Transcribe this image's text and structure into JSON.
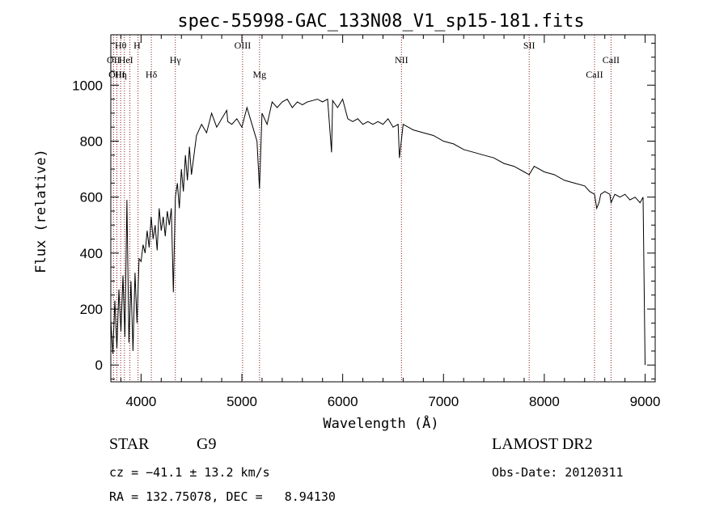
{
  "chart_data": {
    "type": "line",
    "title": "spec-55998-GAC_133N08_V1_sp15-181.fits",
    "xlabel": "Wavelength (Å)",
    "ylabel": "Flux (relative)",
    "xlim": [
      3700,
      9100
    ],
    "ylim": [
      -60,
      1180
    ],
    "xticks": [
      4000,
      5000,
      6000,
      7000,
      8000,
      9000
    ],
    "yticks": [
      0,
      200,
      400,
      600,
      800,
      1000
    ],
    "grid": false,
    "series": [
      {
        "x": [
          3700,
          3720,
          3740,
          3760,
          3780,
          3800,
          3820,
          3840,
          3860,
          3880,
          3900,
          3920,
          3940,
          3960,
          3980,
          4000,
          4020,
          4040,
          4060,
          4080,
          4100,
          4120,
          4140,
          4160,
          4180,
          4200,
          4220,
          4240,
          4260,
          4280,
          4300,
          4320,
          4340,
          4360,
          4380,
          4400,
          4420,
          4440,
          4460,
          4480,
          4500,
          4550,
          4600,
          4650,
          4700,
          4750,
          4800,
          4850,
          4860,
          4900,
          4950,
          5000,
          5050,
          5100,
          5150,
          5175,
          5200,
          5250,
          5300,
          5350,
          5400,
          5450,
          5500,
          5550,
          5600,
          5650,
          5700,
          5750,
          5800,
          5850,
          5890,
          5900,
          5950,
          6000,
          6050,
          6100,
          6150,
          6200,
          6250,
          6300,
          6350,
          6400,
          6450,
          6500,
          6550,
          6563,
          6600,
          6650,
          6700,
          6800,
          6900,
          7000,
          7100,
          7200,
          7300,
          7400,
          7500,
          7600,
          7700,
          7800,
          7850,
          7900,
          8000,
          8100,
          8200,
          8300,
          8400,
          8450,
          8498,
          8520,
          8542,
          8560,
          8600,
          8650,
          8662,
          8700,
          8750,
          8800,
          8850,
          8900,
          8950,
          8980,
          9000
        ],
        "y": [
          160,
          40,
          230,
          60,
          270,
          120,
          320,
          100,
          590,
          80,
          300,
          50,
          330,
          150,
          380,
          370,
          430,
          400,
          480,
          420,
          530,
          450,
          500,
          410,
          560,
          480,
          530,
          460,
          550,
          500,
          560,
          260,
          600,
          650,
          560,
          700,
          620,
          750,
          660,
          780,
          680,
          820,
          860,
          830,
          900,
          850,
          880,
          910,
          870,
          860,
          880,
          850,
          920,
          860,
          800,
          630,
          900,
          860,
          940,
          920,
          940,
          950,
          920,
          940,
          930,
          940,
          945,
          950,
          940,
          950,
          760,
          945,
          920,
          950,
          880,
          870,
          880,
          860,
          870,
          860,
          870,
          860,
          880,
          850,
          860,
          740,
          860,
          850,
          840,
          830,
          820,
          800,
          790,
          770,
          760,
          750,
          740,
          720,
          710,
          690,
          680,
          710,
          690,
          680,
          660,
          650,
          640,
          620,
          610,
          560,
          580,
          610,
          620,
          610,
          580,
          610,
          600,
          610,
          590,
          600,
          580,
          600,
          0
        ],
        "color": "#000000"
      }
    ],
    "lines": [
      {
        "name": "OII",
        "x": 3727,
        "row": 2,
        "lx": 3727,
        "color": "#8b1a1a"
      },
      {
        "name": "OIII",
        "x": 3760,
        "row": 3,
        "lx": 3760,
        "color": "#8b1a1a"
      },
      {
        "name": "Hθ",
        "x": 3798,
        "row": 1,
        "lx": 3798,
        "color": "#8b1a1a"
      },
      {
        "name": "Hη",
        "x": 3835,
        "row": 3,
        "lx": 3800,
        "color": "#8b1a1a"
      },
      {
        "name": "HeI",
        "x": 3889,
        "row": 2,
        "lx": 3850,
        "color": "#8b1a1a"
      },
      {
        "name": "H",
        "x": 3970,
        "row": 1,
        "lx": 3960,
        "color": "#8b1a1a"
      },
      {
        "name": "Hδ",
        "x": 4102,
        "row": 3,
        "lx": 4102,
        "color": "#8b1a1a"
      },
      {
        "name": "Hγ",
        "x": 4340,
        "row": 2,
        "lx": 4340,
        "color": "#8b1a1a"
      },
      {
        "name": "OIII",
        "x": 5007,
        "row": 1,
        "lx": 5007,
        "color": "#8b1a1a"
      },
      {
        "name": "Mg",
        "x": 5175,
        "row": 3,
        "lx": 5175,
        "color": "#8b1a1a"
      },
      {
        "name": "NII",
        "x": 6583,
        "row": 2,
        "lx": 6583,
        "color": "#8b1a1a"
      },
      {
        "name": "SII",
        "x": 7850,
        "row": 1,
        "lx": 7850,
        "color": "#8b1a1a"
      },
      {
        "name": "CaII",
        "x": 8498,
        "row": 3,
        "lx": 8498,
        "color": "#8b1a1a"
      },
      {
        "name": "CaII",
        "x": 8662,
        "row": 2,
        "lx": 8662,
        "color": "#8b1a1a"
      }
    ]
  },
  "info": {
    "class": "STAR",
    "subclass": "G9",
    "survey": "LAMOST DR2",
    "cz": "cz = −41.1 ± 13.2 km/s",
    "obsdate": "Obs-Date: 20120311",
    "radec": "RA = 132.75078, DEC =   8.94130"
  }
}
